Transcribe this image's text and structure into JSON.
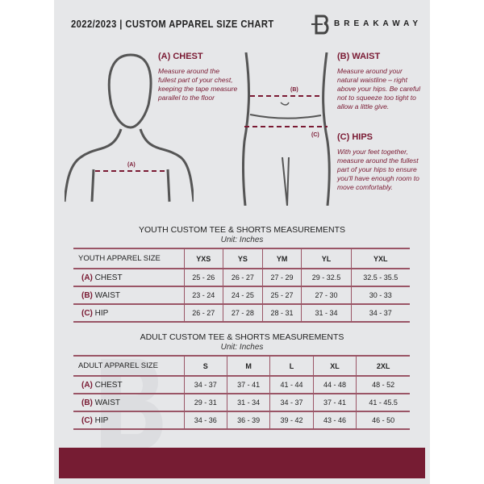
{
  "header": {
    "title": "2022/2023  |  CUSTOM APPAREL SIZE CHART",
    "brand": "BREAKAWAY"
  },
  "measures": {
    "chest": {
      "heading": "(A) CHEST",
      "marker": "(A)",
      "description": "Measure around the fullest part of your chest, keeping the tape measure parallel to the floor"
    },
    "waist": {
      "heading": "(B) WAIST",
      "marker": "(B)",
      "description": "Measure around your natural waistline – right above your hips. Be careful not to squeeze too tight to allow a little give."
    },
    "hips": {
      "heading": "(C) HIPS",
      "marker": "(C)",
      "description": "With your feet together, measure around the fullest part of your hips to ensure you'll have enough room to move comfortably."
    }
  },
  "youth": {
    "title": "YOUTH CUSTOM TEE & SHORTS MEASUREMENTS",
    "unit": "Unit: Inches",
    "header": "YOUTH APPAREL SIZE",
    "sizes": [
      "YXS",
      "YS",
      "YM",
      "YL",
      "YXL"
    ],
    "rows": [
      {
        "letter": "(A)",
        "name": "CHEST",
        "values": [
          "25 - 26",
          "26 - 27",
          "27 - 29",
          "29 - 32.5",
          "32.5 - 35.5"
        ]
      },
      {
        "letter": "(B)",
        "name": "WAIST",
        "values": [
          "23 - 24",
          "24 - 25",
          "25 - 27",
          "27 - 30",
          "30 - 33"
        ]
      },
      {
        "letter": "(C)",
        "name": "HIP",
        "values": [
          "26 - 27",
          "27 - 28",
          "28 - 31",
          "31 - 34",
          "34 - 37"
        ]
      }
    ]
  },
  "adult": {
    "title": "ADULT CUSTOM TEE & SHORTS MEASUREMENTS",
    "unit": "Unit: Inches",
    "header": "ADULT APPAREL SIZE",
    "sizes": [
      "S",
      "M",
      "L",
      "XL",
      "2XL"
    ],
    "rows": [
      {
        "letter": "(A)",
        "name": "CHEST",
        "values": [
          "34 - 37",
          "37 - 41",
          "41 - 44",
          "44 - 48",
          "48 - 52"
        ]
      },
      {
        "letter": "(B)",
        "name": "WAIST",
        "values": [
          "29 - 31",
          "31 - 34",
          "34 - 37",
          "37 - 41",
          "41 - 45.5"
        ]
      },
      {
        "letter": "(C)",
        "name": "HIP",
        "values": [
          "34 - 36",
          "36 - 39",
          "39 - 42",
          "43 - 46",
          "46 - 50"
        ]
      }
    ]
  },
  "colors": {
    "accent": "#761c33",
    "background": "#e6e7e9",
    "outline": "#555555"
  }
}
